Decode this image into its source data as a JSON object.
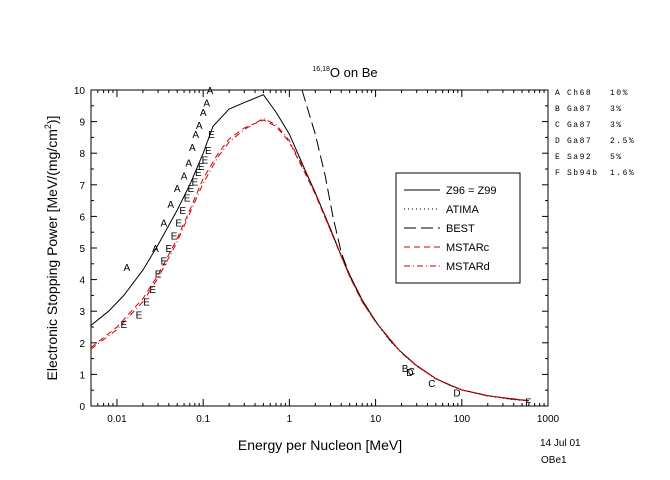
{
  "chart_data": {
    "type": "line",
    "title": "O on Be",
    "title_superscript": "16,18",
    "xlabel": "Energy per Nucleon [MeV]",
    "ylabel": "Electronic Stopping Power [MeV/(mg/cm",
    "ylabel_superscript": "2",
    "ylabel_end": ")]",
    "x_scale": "log",
    "xlim": [
      0.005,
      1000
    ],
    "ylim": [
      0,
      10
    ],
    "x_ticks": [
      {
        "v": 0.01,
        "label": "0.01"
      },
      {
        "v": 0.1,
        "label": "0.1"
      },
      {
        "v": 1,
        "label": "1"
      },
      {
        "v": 10,
        "label": "10"
      },
      {
        "v": 100,
        "label": "100"
      },
      {
        "v": 1000,
        "label": "1000"
      }
    ],
    "y_ticks": [
      {
        "v": 0,
        "label": "0"
      },
      {
        "v": 1,
        "label": "1"
      },
      {
        "v": 2,
        "label": "2"
      },
      {
        "v": 3,
        "label": "3"
      },
      {
        "v": 4,
        "label": "4"
      },
      {
        "v": 5,
        "label": "5"
      },
      {
        "v": 6,
        "label": "6"
      },
      {
        "v": 7,
        "label": "7"
      },
      {
        "v": 8,
        "label": "8"
      },
      {
        "v": 9,
        "label": "9"
      },
      {
        "v": 10,
        "label": "10"
      }
    ],
    "legend_position": "right",
    "series": [
      {
        "name": "Z96 = Z99",
        "style": "solid",
        "color": "#000000",
        "points": [
          [
            0.005,
            2.55
          ],
          [
            0.008,
            3.0
          ],
          [
            0.012,
            3.5
          ],
          [
            0.02,
            4.3
          ],
          [
            0.03,
            5.1
          ],
          [
            0.05,
            6.2
          ],
          [
            0.07,
            7.0
          ],
          [
            0.1,
            8.0
          ],
          [
            0.13,
            8.85
          ],
          [
            0.2,
            9.4
          ],
          [
            0.3,
            9.6
          ],
          [
            0.5,
            9.85
          ],
          [
            0.7,
            9.3
          ],
          [
            1.0,
            8.6
          ],
          [
            1.5,
            7.5
          ],
          [
            2,
            6.75
          ],
          [
            3,
            5.6
          ],
          [
            4,
            4.75
          ],
          [
            5,
            4.15
          ],
          [
            7,
            3.35
          ],
          [
            10,
            2.68
          ],
          [
            15,
            2.05
          ],
          [
            20,
            1.7
          ],
          [
            30,
            1.28
          ],
          [
            50,
            0.87
          ],
          [
            70,
            0.68
          ],
          [
            100,
            0.51
          ],
          [
            200,
            0.33
          ],
          [
            400,
            0.21
          ],
          [
            600,
            0.17
          ]
        ]
      },
      {
        "name": "ATIMA",
        "style": "dotted",
        "color": "#000000",
        "points": [
          [
            3,
            5.55
          ],
          [
            4,
            4.75
          ],
          [
            5,
            4.12
          ],
          [
            7,
            3.32
          ],
          [
            10,
            2.66
          ],
          [
            15,
            2.03
          ],
          [
            20,
            1.68
          ],
          [
            30,
            1.26
          ],
          [
            50,
            0.86
          ],
          [
            70,
            0.67
          ],
          [
            100,
            0.5
          ],
          [
            200,
            0.32
          ],
          [
            400,
            0.2
          ],
          [
            600,
            0.16
          ]
        ]
      },
      {
        "name": "BEST",
        "style": "longdash",
        "color": "#000000",
        "points": [
          [
            1.4,
            10.0
          ],
          [
            2,
            8.6
          ],
          [
            2.6,
            7.3
          ],
          [
            3.2,
            6.0
          ],
          [
            4,
            4.85
          ],
          [
            5,
            4.15
          ],
          [
            7,
            3.35
          ],
          [
            10,
            2.68
          ]
        ]
      },
      {
        "name": "MSTARc",
        "style": "dashed",
        "color": "#cc0000",
        "points": [
          [
            0.005,
            1.85
          ],
          [
            0.01,
            2.5
          ],
          [
            0.02,
            3.4
          ],
          [
            0.03,
            4.15
          ],
          [
            0.05,
            5.3
          ],
          [
            0.07,
            6.2
          ],
          [
            0.1,
            7.2
          ],
          [
            0.15,
            8.0
          ],
          [
            0.2,
            8.45
          ],
          [
            0.3,
            8.8
          ],
          [
            0.5,
            9.05
          ],
          [
            0.7,
            8.85
          ],
          [
            1,
            8.35
          ],
          [
            1.5,
            7.4
          ],
          [
            2,
            6.7
          ],
          [
            3,
            5.55
          ],
          [
            5,
            4.1
          ],
          [
            7,
            3.3
          ],
          [
            10,
            2.66
          ],
          [
            20,
            1.68
          ],
          [
            30,
            1.27
          ],
          [
            50,
            0.86
          ],
          [
            100,
            0.51
          ],
          [
            200,
            0.32
          ],
          [
            600,
            0.17
          ]
        ]
      },
      {
        "name": "MSTARd",
        "style": "dashdot",
        "color": "#cc0000",
        "points": [
          [
            0.005,
            1.8
          ],
          [
            0.01,
            2.42
          ],
          [
            0.02,
            3.3
          ],
          [
            0.03,
            4.05
          ],
          [
            0.05,
            5.2
          ],
          [
            0.07,
            6.1
          ],
          [
            0.1,
            7.05
          ],
          [
            0.15,
            7.9
          ],
          [
            0.2,
            8.35
          ],
          [
            0.3,
            8.75
          ],
          [
            0.5,
            9.1
          ],
          [
            0.7,
            8.9
          ],
          [
            1,
            8.4
          ],
          [
            1.5,
            7.45
          ],
          [
            2,
            6.72
          ],
          [
            3,
            5.57
          ],
          [
            5,
            4.1
          ],
          [
            7,
            3.3
          ],
          [
            10,
            2.66
          ],
          [
            20,
            1.68
          ],
          [
            30,
            1.27
          ],
          [
            50,
            0.86
          ],
          [
            100,
            0.51
          ],
          [
            200,
            0.32
          ],
          [
            600,
            0.17
          ]
        ]
      }
    ],
    "markers": [
      {
        "label": "A",
        "x": 0.013,
        "y": 4.4
      },
      {
        "label": "A",
        "x": 0.028,
        "y": 5.0
      },
      {
        "label": "A",
        "x": 0.035,
        "y": 5.8
      },
      {
        "label": "A",
        "x": 0.042,
        "y": 6.4
      },
      {
        "label": "A",
        "x": 0.05,
        "y": 6.9
      },
      {
        "label": "A",
        "x": 0.06,
        "y": 7.3
      },
      {
        "label": "A",
        "x": 0.068,
        "y": 7.7
      },
      {
        "label": "A",
        "x": 0.075,
        "y": 8.2
      },
      {
        "label": "A",
        "x": 0.082,
        "y": 8.6
      },
      {
        "label": "A",
        "x": 0.09,
        "y": 8.9
      },
      {
        "label": "A",
        "x": 0.1,
        "y": 9.3
      },
      {
        "label": "A",
        "x": 0.11,
        "y": 9.6
      },
      {
        "label": "A",
        "x": 0.12,
        "y": 10.0
      },
      {
        "label": "E",
        "x": 0.012,
        "y": 2.6
      },
      {
        "label": "E",
        "x": 0.018,
        "y": 2.9
      },
      {
        "label": "E",
        "x": 0.022,
        "y": 3.3
      },
      {
        "label": "E",
        "x": 0.026,
        "y": 3.7
      },
      {
        "label": "E",
        "x": 0.03,
        "y": 4.2
      },
      {
        "label": "E",
        "x": 0.035,
        "y": 4.6
      },
      {
        "label": "E",
        "x": 0.04,
        "y": 5.0
      },
      {
        "label": "E",
        "x": 0.046,
        "y": 5.4
      },
      {
        "label": "E",
        "x": 0.052,
        "y": 5.8
      },
      {
        "label": "E",
        "x": 0.058,
        "y": 6.2
      },
      {
        "label": "E",
        "x": 0.065,
        "y": 6.6
      },
      {
        "label": "E",
        "x": 0.072,
        "y": 6.9
      },
      {
        "label": "E",
        "x": 0.08,
        "y": 7.1
      },
      {
        "label": "E",
        "x": 0.088,
        "y": 7.4
      },
      {
        "label": "E",
        "x": 0.095,
        "y": 7.6
      },
      {
        "label": "E",
        "x": 0.105,
        "y": 7.8
      },
      {
        "label": "E",
        "x": 0.115,
        "y": 8.1
      },
      {
        "label": "E",
        "x": 0.125,
        "y": 8.6
      },
      {
        "label": "B",
        "x": 22,
        "y": 1.2
      },
      {
        "label": "D",
        "x": 25,
        "y": 1.08
      },
      {
        "label": "C",
        "x": 26,
        "y": 1.1
      },
      {
        "label": "C",
        "x": 45,
        "y": 0.72
      },
      {
        "label": "D",
        "x": 88,
        "y": 0.42
      },
      {
        "label": "F",
        "x": 590,
        "y": 0.14
      }
    ],
    "reference_list": [
      {
        "key": "A",
        "ref": "Ch68",
        "uncertainty": "10%"
      },
      {
        "key": "B",
        "ref": "Ga87",
        "uncertainty": "3%"
      },
      {
        "key": "C",
        "ref": "Ga87",
        "uncertainty": "3%"
      },
      {
        "key": "D",
        "ref": "Ga87",
        "uncertainty": "2.5%"
      },
      {
        "key": "E",
        "ref": "Sa92",
        "uncertainty": "5%"
      },
      {
        "key": "F",
        "ref": "Sb94b",
        "uncertainty": "1.6%"
      }
    ],
    "date_note": "14 Jul 01",
    "file_note": "OBe1"
  }
}
